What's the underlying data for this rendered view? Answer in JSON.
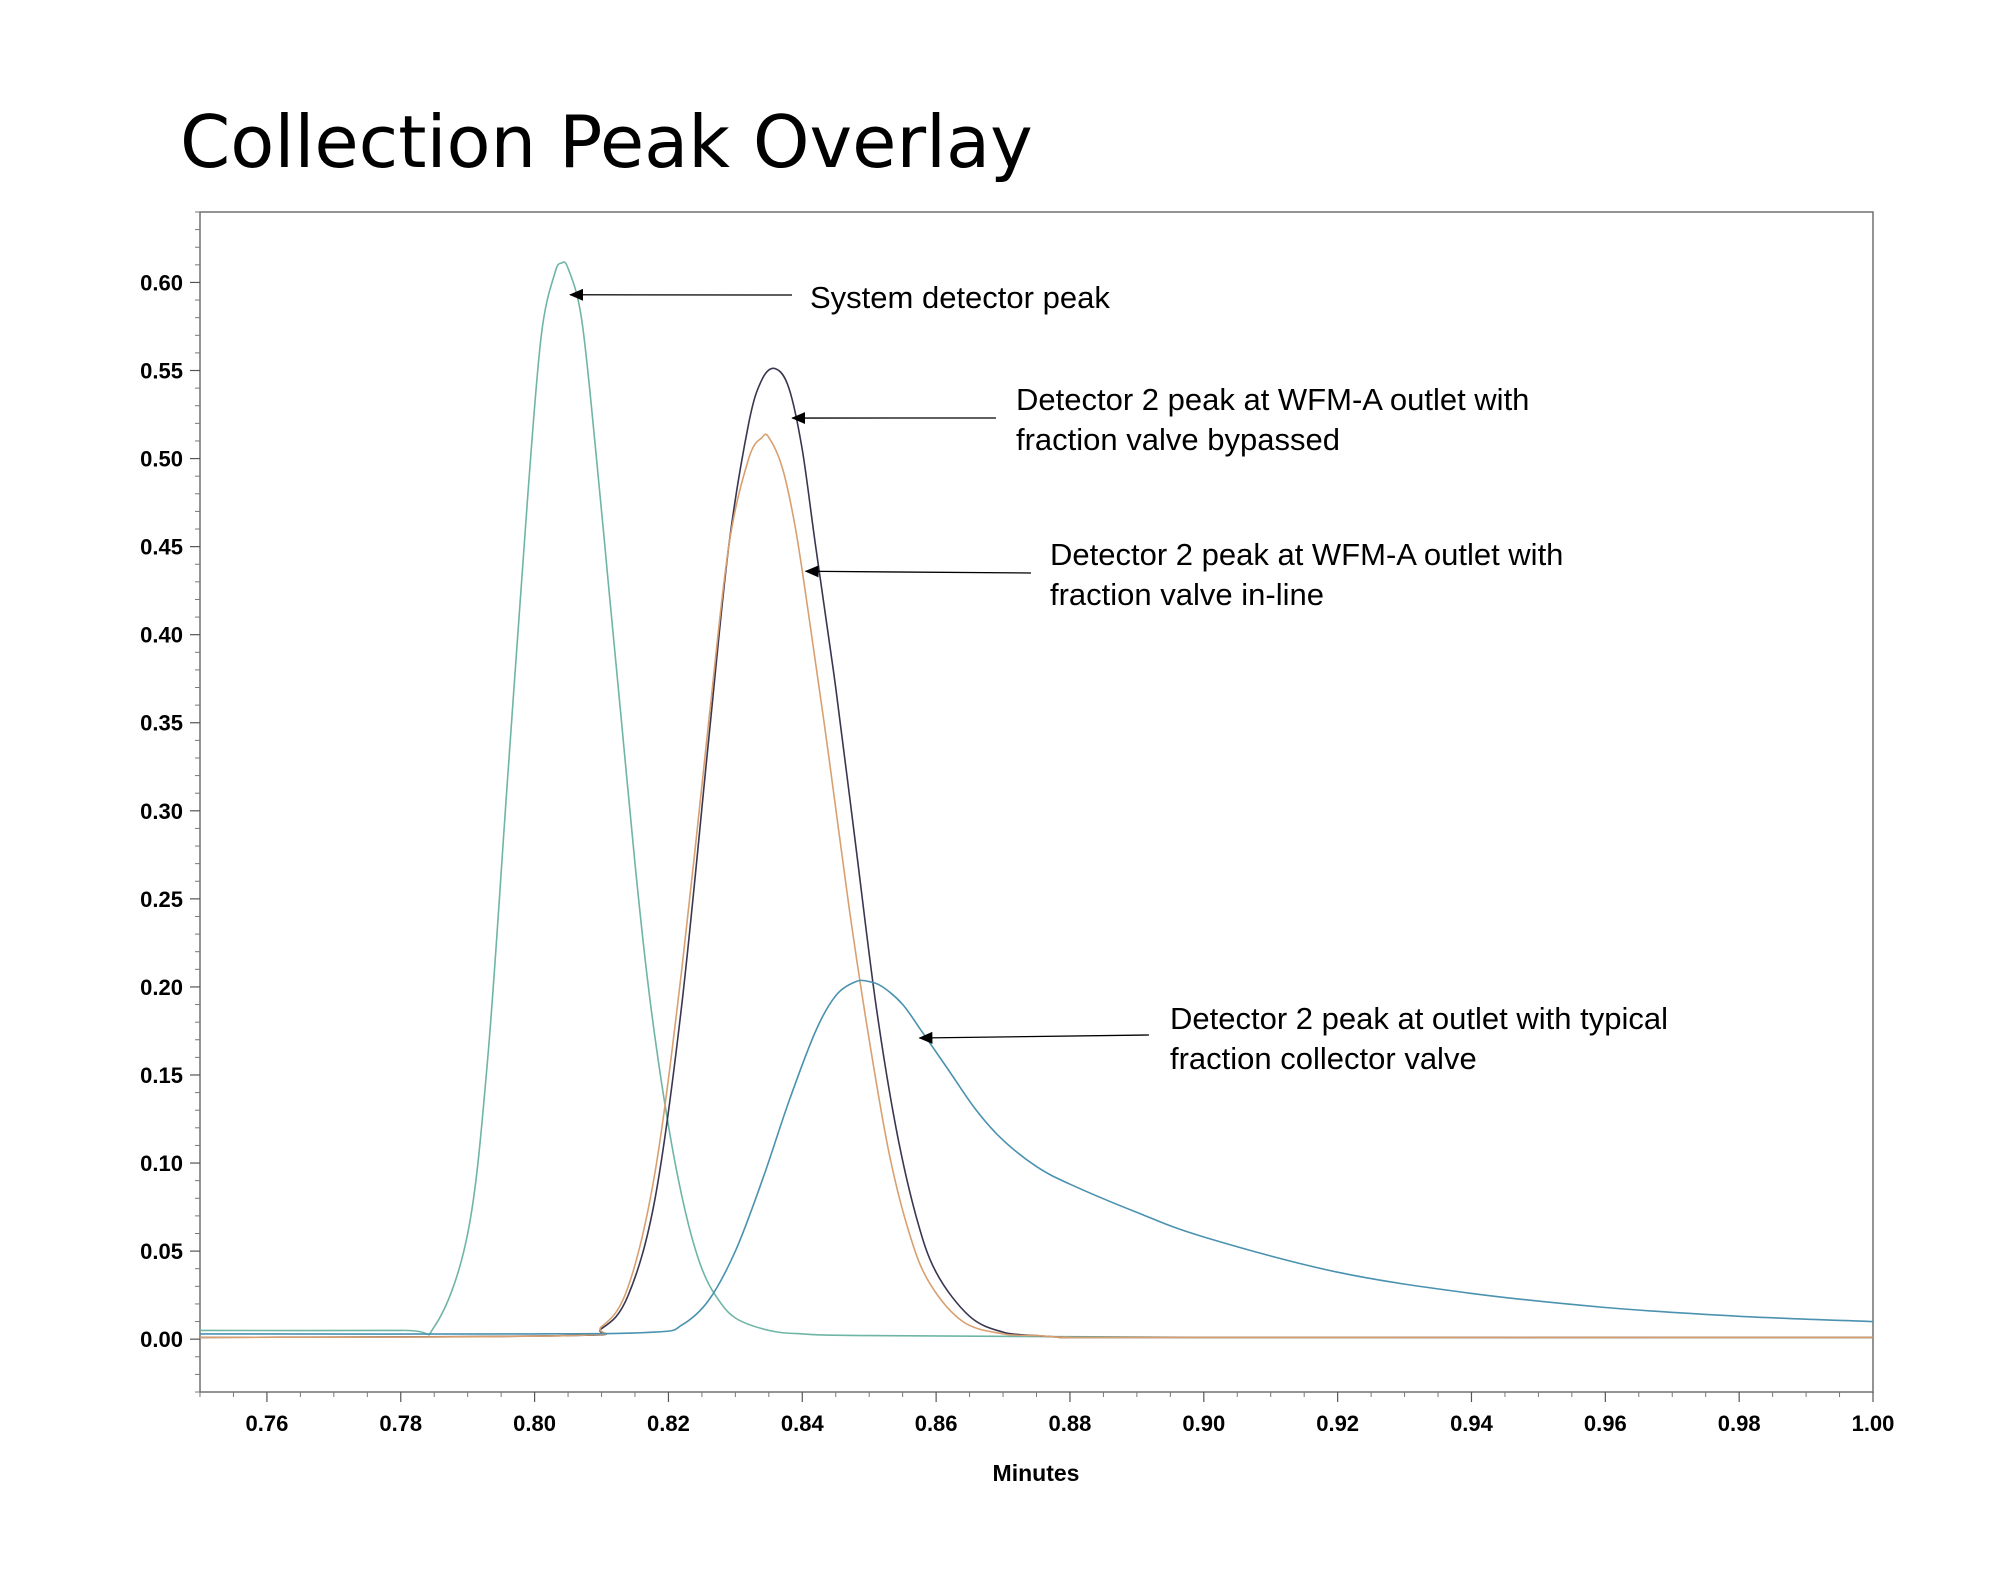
{
  "chart_data": {
    "type": "line",
    "title": "Collection Peak Overlay",
    "xlabel": "Minutes",
    "ylabel": "",
    "xlim": [
      0.75,
      1.0
    ],
    "ylim": [
      -0.03,
      0.64
    ],
    "x_ticks": [
      "0.76",
      "0.78",
      "0.80",
      "0.82",
      "0.84",
      "0.86",
      "0.88",
      "0.90",
      "0.92",
      "0.94",
      "0.96",
      "0.98",
      "1.00"
    ],
    "y_ticks": [
      "0.00",
      "0.05",
      "0.10",
      "0.15",
      "0.20",
      "0.25",
      "0.30",
      "0.35",
      "0.40",
      "0.45",
      "0.50",
      "0.55",
      "0.60"
    ],
    "grid": false,
    "legend": "none",
    "series": [
      {
        "color": "#6fb5a5",
        "x": [
          0.75,
          0.78,
          0.785,
          0.79,
          0.793,
          0.796,
          0.799,
          0.801,
          0.803,
          0.804,
          0.805,
          0.807,
          0.809,
          0.811,
          0.813,
          0.815,
          0.817,
          0.819,
          0.821,
          0.823,
          0.825,
          0.827,
          0.83,
          0.835,
          0.84,
          0.85,
          0.9,
          1.0
        ],
        "y": [
          0.005,
          0.005,
          0.007,
          0.06,
          0.16,
          0.32,
          0.48,
          0.57,
          0.605,
          0.611,
          0.608,
          0.58,
          0.51,
          0.43,
          0.35,
          0.27,
          0.2,
          0.145,
          0.1,
          0.065,
          0.04,
          0.025,
          0.012,
          0.005,
          0.003,
          0.002,
          0.001,
          0.001
        ]
      },
      {
        "color": "#3a3650",
        "x": [
          0.75,
          0.805,
          0.81,
          0.814,
          0.818,
          0.822,
          0.826,
          0.829,
          0.832,
          0.834,
          0.836,
          0.838,
          0.84,
          0.842,
          0.845,
          0.848,
          0.851,
          0.854,
          0.857,
          0.86,
          0.865,
          0.87,
          0.875,
          0.88,
          0.89,
          1.0
        ],
        "y": [
          0.001,
          0.002,
          0.006,
          0.025,
          0.08,
          0.19,
          0.34,
          0.45,
          0.52,
          0.545,
          0.551,
          0.54,
          0.505,
          0.45,
          0.37,
          0.28,
          0.19,
          0.12,
          0.07,
          0.038,
          0.013,
          0.004,
          0.002,
          0.001,
          0.001,
          0.001
        ]
      },
      {
        "color": "#d8a070",
        "x": [
          0.75,
          0.805,
          0.81,
          0.814,
          0.818,
          0.822,
          0.826,
          0.829,
          0.832,
          0.834,
          0.835,
          0.837,
          0.839,
          0.841,
          0.844,
          0.847,
          0.85,
          0.853,
          0.856,
          0.859,
          0.864,
          0.87,
          0.875,
          0.88,
          0.89,
          1.0
        ],
        "y": [
          0.001,
          0.002,
          0.007,
          0.03,
          0.095,
          0.21,
          0.35,
          0.45,
          0.5,
          0.512,
          0.512,
          0.495,
          0.46,
          0.41,
          0.33,
          0.245,
          0.17,
          0.105,
          0.06,
          0.032,
          0.01,
          0.003,
          0.002,
          0.001,
          0.001,
          0.001
        ]
      },
      {
        "color": "#4a92b0",
        "x": [
          0.75,
          0.8,
          0.818,
          0.822,
          0.826,
          0.83,
          0.834,
          0.838,
          0.842,
          0.845,
          0.848,
          0.85,
          0.852,
          0.855,
          0.858,
          0.862,
          0.866,
          0.87,
          0.875,
          0.88,
          0.89,
          0.9,
          0.92,
          0.94,
          0.96,
          0.98,
          1.0
        ],
        "y": [
          0.003,
          0.003,
          0.004,
          0.008,
          0.022,
          0.05,
          0.09,
          0.135,
          0.175,
          0.195,
          0.203,
          0.203,
          0.2,
          0.19,
          0.174,
          0.152,
          0.13,
          0.113,
          0.098,
          0.088,
          0.072,
          0.058,
          0.038,
          0.026,
          0.018,
          0.013,
          0.01
        ]
      }
    ],
    "annotations": [
      {
        "lines": [
          "System detector peak"
        ],
        "target": [
          0.8053,
          0.593
        ]
      },
      {
        "lines": [
          "Detector 2 peak at WFM-A outlet with",
          "fraction valve bypassed"
        ],
        "target": [
          0.8385,
          0.523
        ]
      },
      {
        "lines": [
          "Detector 2 peak at WFM-A outlet with",
          "fraction valve in-line"
        ],
        "target": [
          0.8405,
          0.436
        ]
      },
      {
        "lines": [
          "Detector 2 peak at outlet with typical",
          "fraction collector valve"
        ],
        "target": [
          0.8575,
          0.171
        ]
      }
    ]
  }
}
